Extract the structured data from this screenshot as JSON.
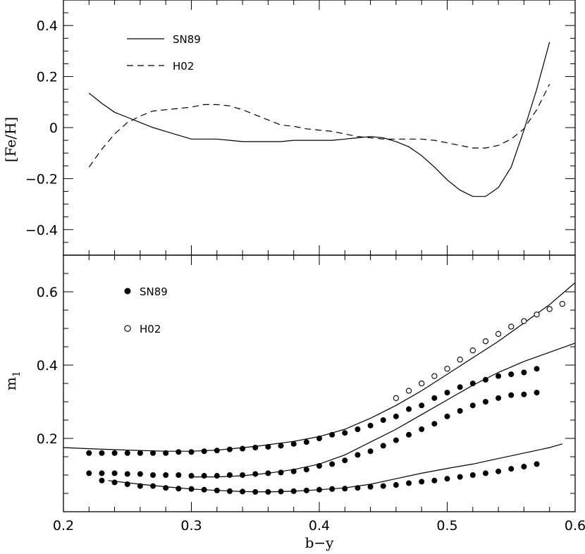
{
  "chart_data": [
    {
      "type": "line",
      "panel": "top",
      "xlabel": "",
      "ylabel": "[Fe/H]",
      "xlim": [
        0.2,
        0.6
      ],
      "ylim": [
        -0.5,
        0.5
      ],
      "yticks": [
        -0.4,
        -0.2,
        0,
        0.2,
        0.4
      ],
      "ytick_labels": [
        "−0.4",
        "−0.2",
        "0",
        "0.2",
        "0.4"
      ],
      "legend": [
        {
          "label": "SN89",
          "style": "solid"
        },
        {
          "label": "H02",
          "style": "dashed"
        }
      ],
      "series": [
        {
          "name": "SN89",
          "style": "solid",
          "x": [
            0.22,
            0.23,
            0.24,
            0.25,
            0.26,
            0.27,
            0.28,
            0.29,
            0.3,
            0.31,
            0.32,
            0.33,
            0.34,
            0.35,
            0.36,
            0.37,
            0.38,
            0.39,
            0.4,
            0.41,
            0.42,
            0.43,
            0.44,
            0.45,
            0.46,
            0.47,
            0.48,
            0.49,
            0.5,
            0.51,
            0.52,
            0.53,
            0.54,
            0.55,
            0.56,
            0.57,
            0.58
          ],
          "y": [
            0.135,
            0.095,
            0.06,
            0.04,
            0.02,
            0.0,
            -0.015,
            -0.03,
            -0.045,
            -0.045,
            -0.045,
            -0.05,
            -0.055,
            -0.055,
            -0.055,
            -0.055,
            -0.05,
            -0.05,
            -0.05,
            -0.05,
            -0.045,
            -0.04,
            -0.035,
            -0.04,
            -0.055,
            -0.075,
            -0.11,
            -0.155,
            -0.205,
            -0.245,
            -0.27,
            -0.27,
            -0.235,
            -0.155,
            -0.01,
            0.15,
            0.335
          ]
        },
        {
          "name": "H02",
          "style": "dashed",
          "x": [
            0.22,
            0.23,
            0.24,
            0.25,
            0.26,
            0.27,
            0.28,
            0.29,
            0.3,
            0.31,
            0.32,
            0.33,
            0.34,
            0.35,
            0.36,
            0.37,
            0.38,
            0.39,
            0.4,
            0.41,
            0.42,
            0.43,
            0.44,
            0.45,
            0.46,
            0.47,
            0.48,
            0.49,
            0.5,
            0.51,
            0.52,
            0.53,
            0.54,
            0.55,
            0.56,
            0.57,
            0.58
          ],
          "y": [
            -0.155,
            -0.085,
            -0.025,
            0.02,
            0.045,
            0.065,
            0.07,
            0.075,
            0.08,
            0.09,
            0.09,
            0.085,
            0.07,
            0.05,
            0.03,
            0.01,
            0.005,
            -0.005,
            -0.01,
            -0.015,
            -0.025,
            -0.035,
            -0.04,
            -0.045,
            -0.045,
            -0.045,
            -0.045,
            -0.05,
            -0.06,
            -0.07,
            -0.08,
            -0.08,
            -0.07,
            -0.045,
            -0.005,
            0.07,
            0.17
          ]
        }
      ]
    },
    {
      "type": "scatter",
      "panel": "bottom",
      "xlabel": "b−y",
      "ylabel": "m",
      "ylabel_subscript": "1",
      "xlim": [
        0.2,
        0.6
      ],
      "ylim": [
        0.0,
        0.7
      ],
      "xticks": [
        0.2,
        0.3,
        0.4,
        0.5,
        0.6
      ],
      "xtick_labels": [
        "0.2",
        "0.3",
        "0.4",
        "0.5",
        "0.6"
      ],
      "yticks": [
        0.2,
        0.4,
        0.6
      ],
      "ytick_labels": [
        "0.2",
        "0.4",
        "0.6"
      ],
      "legend": [
        {
          "label": "SN89",
          "marker": "filled-circle"
        },
        {
          "label": "H02",
          "marker": "open-circle"
        }
      ],
      "lines": [
        {
          "name": "upper",
          "x": [
            0.2,
            0.22,
            0.25,
            0.28,
            0.3,
            0.32,
            0.35,
            0.38,
            0.4,
            0.42,
            0.44,
            0.46,
            0.48,
            0.5,
            0.52,
            0.54,
            0.56,
            0.58,
            0.6
          ],
          "y": [
            0.175,
            0.172,
            0.168,
            0.165,
            0.165,
            0.168,
            0.178,
            0.192,
            0.205,
            0.225,
            0.255,
            0.29,
            0.33,
            0.375,
            0.42,
            0.465,
            0.515,
            0.565,
            0.625
          ]
        },
        {
          "name": "middle",
          "x": [
            0.3,
            0.32,
            0.34,
            0.36,
            0.38,
            0.4,
            0.42,
            0.44,
            0.46,
            0.48,
            0.5,
            0.52,
            0.54,
            0.56,
            0.58,
            0.6
          ],
          "y": [
            0.095,
            0.095,
            0.098,
            0.105,
            0.115,
            0.13,
            0.155,
            0.19,
            0.225,
            0.265,
            0.305,
            0.345,
            0.38,
            0.41,
            0.435,
            0.46
          ]
        },
        {
          "name": "lower",
          "x": [
            0.235,
            0.26,
            0.28,
            0.3,
            0.32,
            0.34,
            0.36,
            0.38,
            0.4,
            0.42,
            0.44,
            0.46,
            0.48,
            0.5,
            0.52,
            0.54,
            0.56,
            0.58,
            0.59
          ],
          "y": [
            0.085,
            0.075,
            0.068,
            0.062,
            0.058,
            0.055,
            0.054,
            0.056,
            0.06,
            0.065,
            0.075,
            0.09,
            0.105,
            0.118,
            0.13,
            0.145,
            0.16,
            0.175,
            0.185
          ]
        }
      ],
      "series": [
        {
          "name": "SN89",
          "marker": "filled-circle",
          "x": [
            0.22,
            0.23,
            0.24,
            0.25,
            0.26,
            0.27,
            0.28,
            0.29,
            0.3,
            0.31,
            0.32,
            0.33,
            0.34,
            0.35,
            0.36,
            0.37,
            0.38,
            0.39,
            0.4,
            0.41,
            0.42,
            0.43,
            0.44,
            0.45,
            0.46,
            0.47,
            0.48,
            0.49,
            0.5,
            0.51,
            0.52,
            0.53,
            0.54,
            0.55,
            0.56,
            0.57,
            0.22,
            0.23,
            0.24,
            0.25,
            0.26,
            0.27,
            0.28,
            0.29,
            0.3,
            0.31,
            0.32,
            0.33,
            0.34,
            0.35,
            0.36,
            0.37,
            0.38,
            0.39,
            0.4,
            0.41,
            0.42,
            0.43,
            0.44,
            0.45,
            0.46,
            0.47,
            0.48,
            0.49,
            0.5,
            0.51,
            0.52,
            0.53,
            0.54,
            0.55,
            0.56,
            0.57,
            0.23,
            0.24,
            0.25,
            0.26,
            0.27,
            0.28,
            0.29,
            0.3,
            0.31,
            0.32,
            0.33,
            0.34,
            0.35,
            0.36,
            0.37,
            0.38,
            0.39,
            0.4,
            0.41,
            0.42,
            0.43,
            0.44,
            0.45,
            0.46,
            0.47,
            0.48,
            0.49,
            0.5,
            0.51,
            0.52,
            0.53,
            0.54,
            0.55,
            0.56,
            0.57
          ],
          "y": [
            0.16,
            0.16,
            0.16,
            0.16,
            0.16,
            0.16,
            0.16,
            0.163,
            0.163,
            0.165,
            0.167,
            0.17,
            0.172,
            0.175,
            0.177,
            0.18,
            0.185,
            0.19,
            0.2,
            0.21,
            0.215,
            0.225,
            0.235,
            0.25,
            0.26,
            0.28,
            0.29,
            0.31,
            0.325,
            0.34,
            0.35,
            0.36,
            0.37,
            0.375,
            0.38,
            0.39,
            0.105,
            0.105,
            0.105,
            0.103,
            0.103,
            0.1,
            0.1,
            0.1,
            0.098,
            0.098,
            0.098,
            0.1,
            0.1,
            0.103,
            0.105,
            0.107,
            0.11,
            0.115,
            0.125,
            0.13,
            0.14,
            0.155,
            0.165,
            0.18,
            0.195,
            0.21,
            0.225,
            0.24,
            0.26,
            0.275,
            0.29,
            0.3,
            0.31,
            0.318,
            0.32,
            0.325,
            0.085,
            0.08,
            0.075,
            0.07,
            0.07,
            0.065,
            0.063,
            0.062,
            0.06,
            0.058,
            0.056,
            0.055,
            0.054,
            0.054,
            0.055,
            0.056,
            0.058,
            0.06,
            0.062,
            0.063,
            0.065,
            0.068,
            0.07,
            0.073,
            0.078,
            0.082,
            0.085,
            0.09,
            0.095,
            0.1,
            0.105,
            0.11,
            0.117,
            0.123,
            0.13
          ]
        },
        {
          "name": "H02",
          "marker": "open-circle",
          "x": [
            0.46,
            0.47,
            0.48,
            0.49,
            0.5,
            0.51,
            0.52,
            0.53,
            0.54,
            0.55,
            0.56,
            0.57,
            0.58,
            0.59
          ],
          "y": [
            0.31,
            0.33,
            0.35,
            0.37,
            0.39,
            0.415,
            0.44,
            0.465,
            0.485,
            0.505,
            0.52,
            0.538,
            0.553,
            0.567
          ]
        }
      ]
    }
  ]
}
